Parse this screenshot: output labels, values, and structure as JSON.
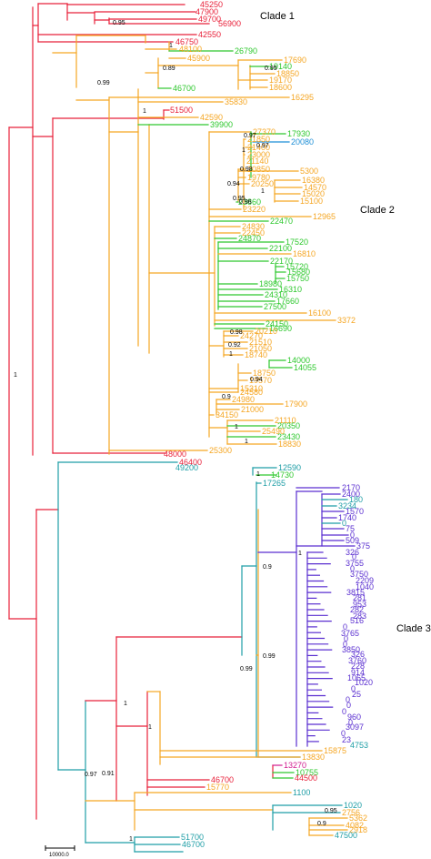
{
  "colors": {
    "red": "#e8213a",
    "orange": "#f5a623",
    "green": "#2ec82e",
    "teal": "#1f9ea6",
    "blue": "#1f8fd6",
    "purple": "#5a2fd0",
    "magenta": "#d11b8f",
    "black": "#000000"
  },
  "clade_labels": [
    "Clade 1",
    "Clade 2",
    "Clade 3"
  ],
  "scale_bar": {
    "label": "10000.0"
  },
  "tips": [
    {
      "label": "45250",
      "color": "red"
    },
    {
      "label": "47900",
      "color": "red"
    },
    {
      "label": "49700",
      "color": "red"
    },
    {
      "label": "56900",
      "color": "red"
    },
    {
      "label": "42550",
      "color": "red"
    },
    {
      "label": "46750",
      "color": "red"
    },
    {
      "label": "48100",
      "color": "orange"
    },
    {
      "label": "26790",
      "color": "green"
    },
    {
      "label": "45900",
      "color": "orange"
    },
    {
      "label": "17690",
      "color": "orange"
    },
    {
      "label": "19140",
      "color": "green"
    },
    {
      "label": "18850",
      "color": "orange"
    },
    {
      "label": "19170",
      "color": "orange"
    },
    {
      "label": "18600",
      "color": "orange"
    },
    {
      "label": "46700",
      "color": "green"
    },
    {
      "label": "16295",
      "color": "orange"
    },
    {
      "label": "35830",
      "color": "orange"
    },
    {
      "label": "51500",
      "color": "red"
    },
    {
      "label": "42590",
      "color": "orange"
    },
    {
      "label": "39900",
      "color": "green"
    },
    {
      "label": "27370",
      "color": "orange"
    },
    {
      "label": "17930",
      "color": "green"
    },
    {
      "label": "21850",
      "color": "orange"
    },
    {
      "label": "20080",
      "color": "blue"
    },
    {
      "label": "21400",
      "color": "orange"
    },
    {
      "label": "23000",
      "color": "orange"
    },
    {
      "label": "21140",
      "color": "orange"
    },
    {
      "label": "20850",
      "color": "orange"
    },
    {
      "label": "5300",
      "color": "orange"
    },
    {
      "label": "19780",
      "color": "orange"
    },
    {
      "label": "20250",
      "color": "orange"
    },
    {
      "label": "16380",
      "color": "orange"
    },
    {
      "label": "14570",
      "color": "orange"
    },
    {
      "label": "15020",
      "color": "orange"
    },
    {
      "label": "15100",
      "color": "orange"
    },
    {
      "label": "23860",
      "color": "green"
    },
    {
      "label": "23220",
      "color": "orange"
    },
    {
      "label": "12965",
      "color": "orange"
    },
    {
      "label": "22470",
      "color": "green"
    },
    {
      "label": "24830",
      "color": "orange"
    },
    {
      "label": "22450",
      "color": "orange"
    },
    {
      "label": "24870",
      "color": "green"
    },
    {
      "label": "17520",
      "color": "green"
    },
    {
      "label": "22100",
      "color": "green"
    },
    {
      "label": "16810",
      "color": "orange"
    },
    {
      "label": "22170",
      "color": "green"
    },
    {
      "label": "15720",
      "color": "green"
    },
    {
      "label": "15680",
      "color": "green"
    },
    {
      "label": "15750",
      "color": "green"
    },
    {
      "label": "18980",
      "color": "green"
    },
    {
      "label": "16310",
      "color": "green"
    },
    {
      "label": "24310",
      "color": "green"
    },
    {
      "label": "17660",
      "color": "green"
    },
    {
      "label": "27500",
      "color": "green"
    },
    {
      "label": "16100",
      "color": "orange"
    },
    {
      "label": "3372",
      "color": "orange"
    },
    {
      "label": "24150",
      "color": "green"
    },
    {
      "label": "16690",
      "color": "green"
    },
    {
      "label": "20210",
      "color": "orange"
    },
    {
      "label": "24270",
      "color": "orange"
    },
    {
      "label": "21510",
      "color": "orange"
    },
    {
      "label": "21050",
      "color": "orange"
    },
    {
      "label": "18740",
      "color": "orange"
    },
    {
      "label": "14000",
      "color": "green"
    },
    {
      "label": "14055",
      "color": "green"
    },
    {
      "label": "18750",
      "color": "orange"
    },
    {
      "label": "19570",
      "color": "orange"
    },
    {
      "label": "15310",
      "color": "orange"
    },
    {
      "label": "24580",
      "color": "orange"
    },
    {
      "label": "24980",
      "color": "orange"
    },
    {
      "label": "17900",
      "color": "orange"
    },
    {
      "label": "21000",
      "color": "orange"
    },
    {
      "label": "34150",
      "color": "orange"
    },
    {
      "label": "21110",
      "color": "orange"
    },
    {
      "label": "20350",
      "color": "green"
    },
    {
      "label": "25490",
      "color": "orange"
    },
    {
      "label": "23430",
      "color": "green"
    },
    {
      "label": "18830",
      "color": "orange"
    },
    {
      "label": "25300",
      "color": "orange"
    },
    {
      "label": "48000",
      "color": "red"
    },
    {
      "label": "46400",
      "color": "red"
    },
    {
      "label": "49200",
      "color": "teal"
    },
    {
      "label": "12590",
      "color": "teal"
    },
    {
      "label": "14730",
      "color": "green"
    },
    {
      "label": "17265",
      "color": "teal"
    },
    {
      "label": "2170",
      "color": "purple"
    },
    {
      "label": "2400",
      "color": "purple"
    },
    {
      "label": "180",
      "color": "teal"
    },
    {
      "label": "3234",
      "color": "teal"
    },
    {
      "label": "1570",
      "color": "purple"
    },
    {
      "label": "1740",
      "color": "purple"
    },
    {
      "label": "0",
      "color": "teal"
    },
    {
      "label": "75",
      "color": "purple"
    },
    {
      "label": "0",
      "color": "purple"
    },
    {
      "label": "509",
      "color": "purple"
    },
    {
      "label": "375",
      "color": "purple"
    },
    {
      "label": "326",
      "color": "purple"
    },
    {
      "label": "0",
      "color": "purple"
    },
    {
      "label": "3755",
      "color": "purple"
    },
    {
      "label": "0",
      "color": "purple"
    },
    {
      "label": "3750",
      "color": "purple"
    },
    {
      "label": "2209",
      "color": "purple"
    },
    {
      "label": "1040",
      "color": "purple"
    },
    {
      "label": "3815",
      "color": "purple"
    },
    {
      "label": "281",
      "color": "purple"
    },
    {
      "label": "953",
      "color": "purple"
    },
    {
      "label": "282",
      "color": "purple"
    },
    {
      "label": "283",
      "color": "purple"
    },
    {
      "label": "516",
      "color": "purple"
    },
    {
      "label": "0",
      "color": "purple"
    },
    {
      "label": "3765",
      "color": "purple"
    },
    {
      "label": "0",
      "color": "purple"
    },
    {
      "label": "0",
      "color": "purple"
    },
    {
      "label": "3850",
      "color": "purple"
    },
    {
      "label": "326",
      "color": "purple"
    },
    {
      "label": "3760",
      "color": "purple"
    },
    {
      "label": "228",
      "color": "purple"
    },
    {
      "label": "914",
      "color": "purple"
    },
    {
      "label": "1065",
      "color": "purple"
    },
    {
      "label": "1020",
      "color": "purple"
    },
    {
      "label": "0",
      "color": "purple"
    },
    {
      "label": "25",
      "color": "purple"
    },
    {
      "label": "0",
      "color": "purple"
    },
    {
      "label": "0",
      "color": "purple"
    },
    {
      "label": "0",
      "color": "purple"
    },
    {
      "label": "960",
      "color": "purple"
    },
    {
      "label": "0",
      "color": "purple"
    },
    {
      "label": "3097",
      "color": "purple"
    },
    {
      "label": "0",
      "color": "purple"
    },
    {
      "label": "23",
      "color": "purple"
    },
    {
      "label": "4753",
      "color": "teal"
    },
    {
      "label": "15875",
      "color": "orange"
    },
    {
      "label": "13830",
      "color": "orange"
    },
    {
      "label": "13270",
      "color": "magenta"
    },
    {
      "label": "10755",
      "color": "green"
    },
    {
      "label": "44500",
      "color": "red"
    },
    {
      "label": "46700",
      "color": "red"
    },
    {
      "label": "15770",
      "color": "orange"
    },
    {
      "label": "1100",
      "color": "teal"
    },
    {
      "label": "1020",
      "color": "teal"
    },
    {
      "label": "2756",
      "color": "orange"
    },
    {
      "label": "5362",
      "color": "orange"
    },
    {
      "label": "4082",
      "color": "orange"
    },
    {
      "label": "2918",
      "color": "orange"
    },
    {
      "label": "47500",
      "color": "teal"
    },
    {
      "label": "51700",
      "color": "teal"
    },
    {
      "label": "46700",
      "color": "teal"
    }
  ],
  "supports": [
    "0.95",
    "1",
    "0.89",
    "0.95",
    "0.99",
    "1",
    "0.97",
    "0.97",
    "1",
    "0.98",
    "0.94",
    "1",
    "0.95",
    "0.96",
    "0.92",
    "0.98",
    "1",
    "0.94",
    "0.9",
    "1",
    "1",
    "1",
    "1",
    "0.9",
    "1",
    "0.99",
    "0.99",
    "1",
    "1",
    "0.91",
    "0.97",
    "0.95",
    "0.9",
    "1"
  ]
}
